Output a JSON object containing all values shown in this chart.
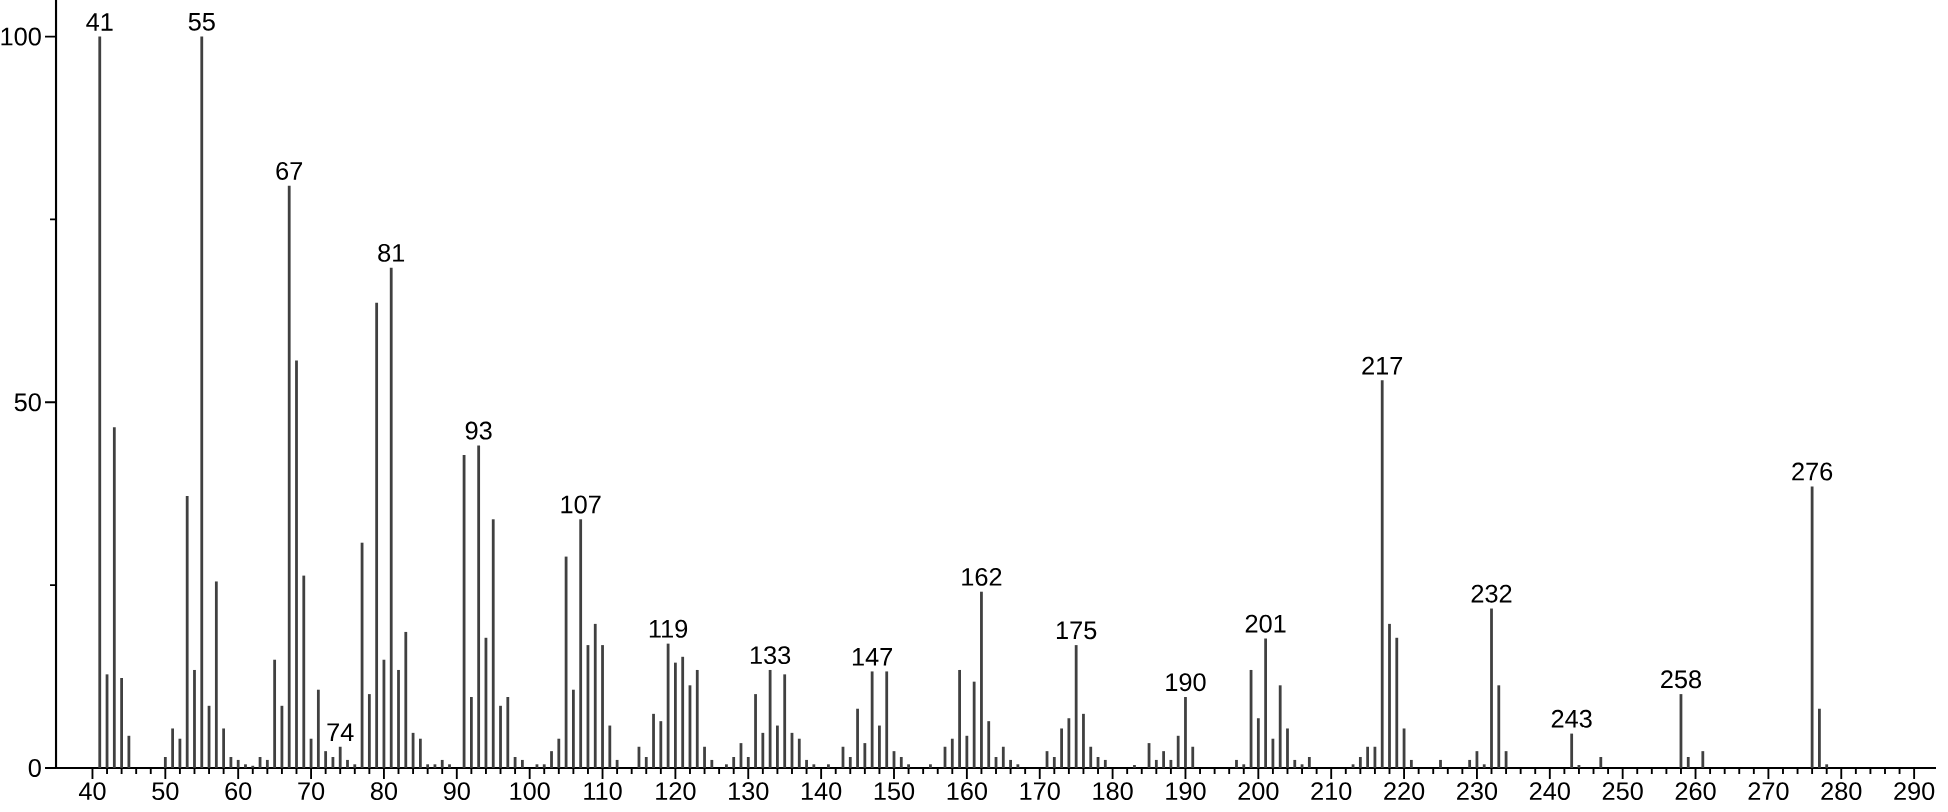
{
  "chart_data": {
    "type": "bar",
    "color": "#404040",
    "x": [
      41,
      42,
      43,
      44,
      45,
      50,
      51,
      52,
      53,
      54,
      55,
      56,
      57,
      58,
      59,
      60,
      61,
      62,
      63,
      64,
      65,
      66,
      67,
      68,
      69,
      70,
      71,
      72,
      73,
      74,
      75,
      76,
      77,
      78,
      79,
      80,
      81,
      82,
      83,
      84,
      85,
      86,
      87,
      88,
      89,
      91,
      92,
      93,
      94,
      95,
      96,
      97,
      98,
      99,
      101,
      102,
      103,
      104,
      105,
      106,
      107,
      108,
      109,
      110,
      111,
      112,
      115,
      116,
      117,
      118,
      119,
      120,
      121,
      122,
      123,
      124,
      125,
      127,
      128,
      129,
      130,
      131,
      132,
      133,
      134,
      135,
      136,
      137,
      138,
      139,
      141,
      143,
      144,
      145,
      146,
      147,
      148,
      149,
      150,
      151,
      152,
      155,
      157,
      158,
      159,
      160,
      161,
      162,
      163,
      164,
      165,
      166,
      167,
      171,
      172,
      173,
      174,
      175,
      176,
      177,
      178,
      179,
      183,
      185,
      186,
      187,
      188,
      189,
      190,
      191,
      197,
      198,
      199,
      200,
      201,
      202,
      203,
      204,
      205,
      206,
      207,
      213,
      214,
      215,
      216,
      217,
      218,
      219,
      220,
      221,
      225,
      229,
      230,
      231,
      232,
      233,
      234,
      243,
      244,
      247,
      258,
      259,
      261,
      276,
      277,
      278
    ],
    "values": [
      100,
      12.8,
      46.6,
      12.3,
      4.4,
      1.5,
      5.4,
      4.0,
      37.2,
      13.4,
      100,
      8.5,
      25.5,
      5.4,
      1.5,
      1.1,
      0.5,
      0.3,
      1.5,
      1.1,
      14.8,
      8.5,
      79.6,
      55.7,
      26.3,
      4.0,
      10.7,
      2.3,
      1.5,
      2.9,
      1.1,
      0.5,
      30.8,
      10.1,
      63.6,
      14.8,
      68.4,
      13.4,
      18.6,
      4.8,
      4.0,
      0.5,
      0.5,
      1.1,
      0.5,
      42.8,
      9.7,
      44.1,
      17.8,
      34.0,
      8.5,
      9.7,
      1.5,
      1.1,
      0.5,
      0.5,
      2.3,
      4.0,
      28.9,
      10.7,
      34.0,
      16.8,
      19.7,
      16.8,
      5.8,
      1.1,
      2.9,
      1.5,
      7.4,
      6.4,
      17.0,
      14.4,
      15.2,
      11.3,
      13.4,
      2.9,
      1.1,
      0.5,
      1.5,
      3.4,
      1.5,
      10.1,
      4.8,
      13.4,
      5.8,
      12.8,
      4.8,
      4.0,
      1.1,
      0.5,
      0.5,
      2.9,
      1.5,
      8.1,
      3.4,
      13.2,
      5.8,
      13.2,
      2.3,
      1.5,
      0.5,
      0.5,
      2.9,
      4.0,
      13.4,
      4.4,
      11.8,
      24.1,
      6.4,
      1.5,
      2.9,
      1.1,
      0.5,
      2.3,
      1.5,
      5.4,
      6.8,
      16.8,
      7.4,
      2.9,
      1.5,
      1.1,
      0.4,
      3.4,
      1.1,
      2.3,
      1.1,
      4.4,
      9.7,
      2.9,
      1.1,
      0.5,
      13.4,
      6.8,
      17.7,
      4.0,
      11.3,
      5.4,
      1.1,
      0.5,
      1.5,
      0.5,
      1.5,
      2.9,
      2.9,
      53.0,
      19.7,
      17.8,
      5.4,
      1.1,
      1.1,
      1.1,
      2.3,
      0.5,
      21.8,
      11.3,
      2.3,
      4.7,
      0.4,
      1.5,
      10.1,
      1.5,
      2.3,
      38.5,
      8.1,
      0.5
    ],
    "xlim": [
      35,
      293
    ],
    "ylim": [
      0,
      105
    ],
    "xticks": [
      40,
      {
        "value": 42,
        "label": null
      },
      {
        "value": 44,
        "label": null
      },
      {
        "value": 46,
        "label": null
      },
      {
        "value": 48,
        "label": null
      },
      50,
      {
        "value": 52,
        "label": null
      },
      {
        "value": 54,
        "label": null
      },
      {
        "value": 56,
        "label": null
      },
      {
        "value": 58,
        "label": null
      },
      60,
      {
        "value": 62,
        "label": null
      },
      {
        "value": 64,
        "label": null
      },
      {
        "value": 66,
        "label": null
      },
      {
        "value": 68,
        "label": null
      },
      70,
      {
        "value": 72,
        "label": null
      },
      {
        "value": 74,
        "label": null
      },
      {
        "value": 76,
        "label": null
      },
      {
        "value": 78,
        "label": null
      },
      80,
      {
        "value": 82,
        "label": null
      },
      {
        "value": 84,
        "label": null
      },
      {
        "value": 86,
        "label": null
      },
      {
        "value": 88,
        "label": null
      },
      90,
      {
        "value": 92,
        "label": null
      },
      {
        "value": 94,
        "label": null
      },
      {
        "value": 96,
        "label": null
      },
      {
        "value": 98,
        "label": null
      },
      100,
      {
        "value": 102,
        "label": null
      },
      {
        "value": 104,
        "label": null
      },
      {
        "value": 106,
        "label": null
      },
      {
        "value": 108,
        "label": null
      },
      110,
      {
        "value": 112,
        "label": null
      },
      {
        "value": 114,
        "label": null
      },
      {
        "value": 116,
        "label": null
      },
      {
        "value": 118,
        "label": null
      },
      120,
      {
        "value": 122,
        "label": null
      },
      {
        "value": 124,
        "label": null
      },
      {
        "value": 126,
        "label": null
      },
      {
        "value": 128,
        "label": null
      },
      130,
      {
        "value": 132,
        "label": null
      },
      {
        "value": 134,
        "label": null
      },
      {
        "value": 136,
        "label": null
      },
      {
        "value": 138,
        "label": null
      },
      140,
      {
        "value": 142,
        "label": null
      },
      {
        "value": 144,
        "label": null
      },
      {
        "value": 146,
        "label": null
      },
      {
        "value": 148,
        "label": null
      },
      150,
      {
        "value": 152,
        "label": null
      },
      {
        "value": 154,
        "label": null
      },
      {
        "value": 156,
        "label": null
      },
      {
        "value": 158,
        "label": null
      },
      160,
      {
        "value": 162,
        "label": null
      },
      {
        "value": 164,
        "label": null
      },
      {
        "value": 166,
        "label": null
      },
      {
        "value": 168,
        "label": null
      },
      170,
      {
        "value": 172,
        "label": null
      },
      {
        "value": 174,
        "label": null
      },
      {
        "value": 176,
        "label": null
      },
      {
        "value": 178,
        "label": null
      },
      180,
      {
        "value": 182,
        "label": null
      },
      {
        "value": 184,
        "label": null
      },
      {
        "value": 186,
        "label": null
      },
      {
        "value": 188,
        "label": null
      },
      190,
      {
        "value": 192,
        "label": null
      },
      {
        "value": 194,
        "label": null
      },
      {
        "value": 196,
        "label": null
      },
      {
        "value": 198,
        "label": null
      },
      200,
      {
        "value": 202,
        "label": null
      },
      {
        "value": 204,
        "label": null
      },
      {
        "value": 206,
        "label": null
      },
      {
        "value": 208,
        "label": null
      },
      210,
      {
        "value": 212,
        "label": null
      },
      {
        "value": 214,
        "label": null
      },
      {
        "value": 216,
        "label": null
      },
      {
        "value": 218,
        "label": null
      },
      220,
      {
        "value": 222,
        "label": null
      },
      {
        "value": 224,
        "label": null
      },
      {
        "value": 226,
        "label": null
      },
      {
        "value": 228,
        "label": null
      },
      230,
      {
        "value": 232,
        "label": null
      },
      {
        "value": 234,
        "label": null
      },
      {
        "value": 236,
        "label": null
      },
      {
        "value": 238,
        "label": null
      },
      240,
      {
        "value": 242,
        "label": null
      },
      {
        "value": 244,
        "label": null
      },
      {
        "value": 246,
        "label": null
      },
      {
        "value": 248,
        "label": null
      },
      250,
      {
        "value": 252,
        "label": null
      },
      {
        "value": 254,
        "label": null
      },
      {
        "value": 256,
        "label": null
      },
      {
        "value": 258,
        "label": null
      },
      260,
      {
        "value": 262,
        "label": null
      },
      {
        "value": 264,
        "label": null
      },
      {
        "value": 266,
        "label": null
      },
      {
        "value": 268,
        "label": null
      },
      270,
      {
        "value": 272,
        "label": null
      },
      {
        "value": 274,
        "label": null
      },
      {
        "value": 276,
        "label": null
      },
      {
        "value": 278,
        "label": null
      },
      280,
      {
        "value": 282,
        "label": null
      },
      {
        "value": 284,
        "label": null
      },
      {
        "value": 286,
        "label": null
      },
      {
        "value": 288,
        "label": null
      },
      290
    ],
    "yticks": [
      0,
      {
        "value": 25,
        "label": null
      },
      50,
      {
        "value": 75,
        "label": null
      },
      100
    ],
    "annotations": [
      {
        "text": "41",
        "x": 41,
        "y": 100
      },
      {
        "text": "55",
        "x": 55,
        "y": 100
      },
      {
        "text": "67",
        "x": 67,
        "y": 79.6
      },
      {
        "text": "74",
        "x": 74,
        "y": 2.9
      },
      {
        "text": "81",
        "x": 81,
        "y": 68.4
      },
      {
        "text": "93",
        "x": 93,
        "y": 44.1
      },
      {
        "text": "107",
        "x": 107,
        "y": 34.0
      },
      {
        "text": "119",
        "x": 119,
        "y": 17.0
      },
      {
        "text": "133",
        "x": 133,
        "y": 13.4
      },
      {
        "text": "147",
        "x": 147,
        "y": 13.2
      },
      {
        "text": "162",
        "x": 162,
        "y": 24.1
      },
      {
        "text": "175",
        "x": 175,
        "y": 16.8
      },
      {
        "text": "190",
        "x": 190,
        "y": 9.7
      },
      {
        "text": "201",
        "x": 201,
        "y": 17.7
      },
      {
        "text": "217",
        "x": 217,
        "y": 53.0
      },
      {
        "text": "232",
        "x": 232,
        "y": 21.8
      },
      {
        "text": "243",
        "x": 243,
        "y": 4.7
      },
      {
        "text": "258",
        "x": 258,
        "y": 10.1
      },
      {
        "text": "276",
        "x": 276,
        "y": 38.5
      }
    ]
  }
}
